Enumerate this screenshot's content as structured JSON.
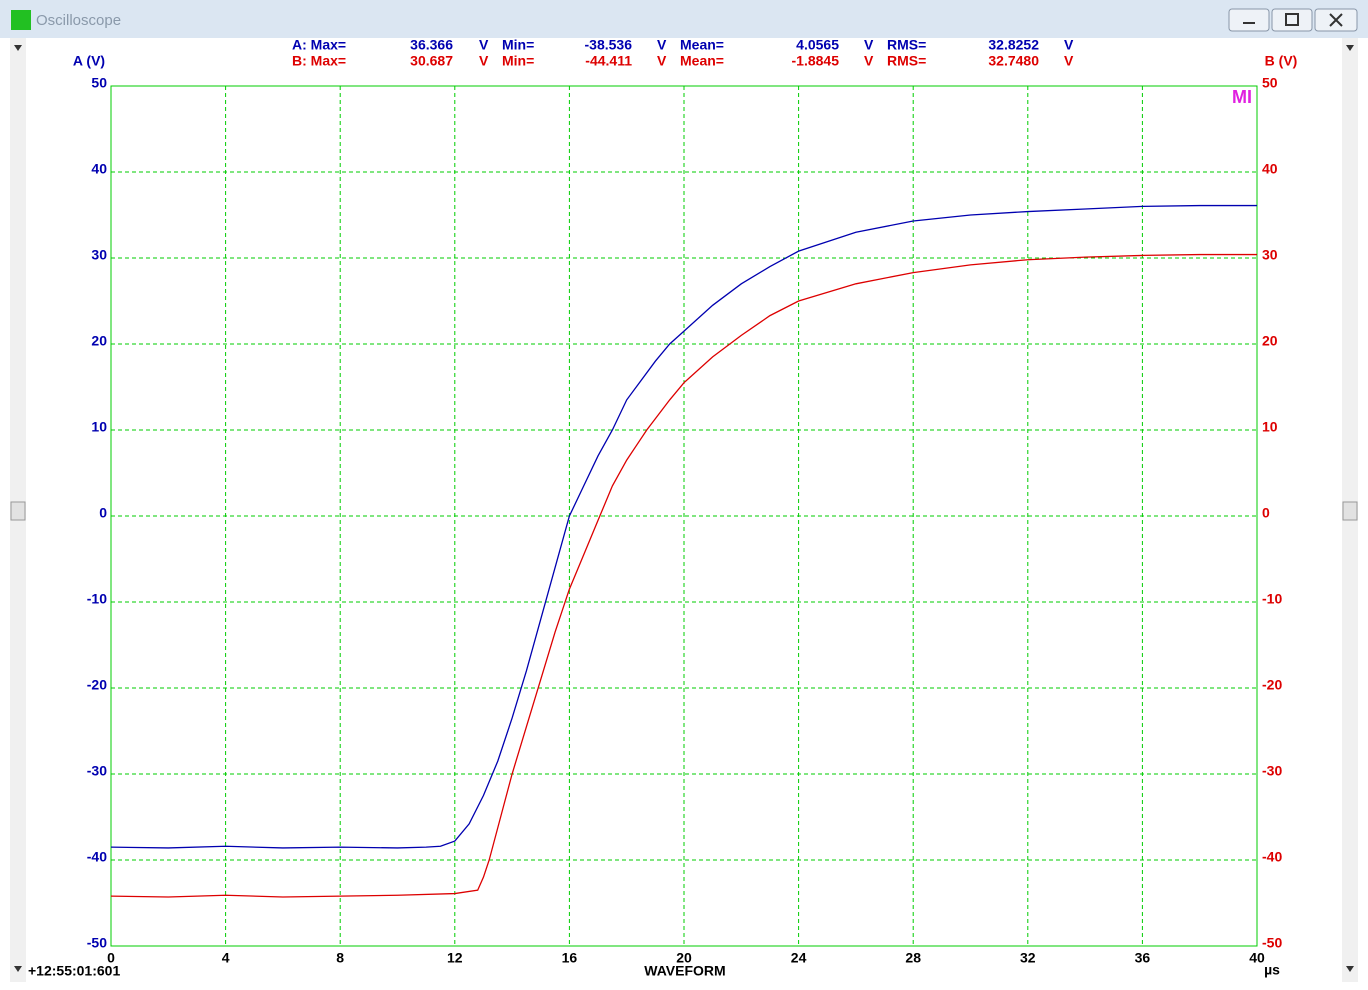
{
  "window": {
    "title": "Oscilloscope"
  },
  "stats": [
    [
      "A: Max=",
      "36.366",
      "V",
      "Min=",
      "-38.536",
      "V",
      "Mean=",
      "4.0565",
      "V",
      "RMS=",
      "32.8252",
      "V"
    ],
    [
      "B: Max=",
      "30.687",
      "V",
      "Min=",
      "-44.411",
      "V",
      "Mean=",
      "-1.8845",
      "V",
      "RMS=",
      "32.7480",
      "V"
    ]
  ],
  "chart_data": {
    "type": "line",
    "x_label": "WAVEFORM",
    "x_unit": "µs",
    "timestamp": "+12:55:01:601",
    "marker": "MI",
    "xlim": [
      0,
      40
    ],
    "xticks": [
      0,
      4,
      8,
      12,
      16,
      20,
      24,
      28,
      32,
      36,
      40
    ],
    "ylim": [
      -50,
      50
    ],
    "yticks": [
      -50,
      -40,
      -30,
      -20,
      -10,
      0,
      10,
      20,
      30,
      40,
      50
    ],
    "y2lim": [
      -50,
      50
    ],
    "y2ticks": [
      -50,
      -40,
      -30,
      -20,
      -10,
      0,
      10,
      20,
      30,
      40,
      50
    ],
    "grid": true,
    "grid_color": "#00cc00",
    "series": [
      {
        "name": "A (V)",
        "color": "#0000b0",
        "x": [
          0,
          2,
          4,
          6,
          8,
          10,
          11,
          11.5,
          12,
          12.5,
          13,
          13.5,
          14,
          14.5,
          15,
          15.5,
          16,
          16.5,
          17,
          17.5,
          18,
          19,
          19.5,
          20,
          21,
          22,
          23,
          24,
          26,
          28,
          30,
          32,
          34,
          36,
          38,
          40
        ],
        "values": [
          -38.5,
          -38.6,
          -38.4,
          -38.6,
          -38.5,
          -38.6,
          -38.5,
          -38.4,
          -37.8,
          -35.8,
          -32.5,
          -28.5,
          -23.5,
          -18,
          -12,
          -6,
          0,
          3.5,
          7,
          10,
          13.5,
          18,
          20,
          21.5,
          24.5,
          27,
          29,
          30.8,
          33,
          34.3,
          35,
          35.4,
          35.7,
          36,
          36.1,
          36.1
        ]
      },
      {
        "name": "B (V)",
        "color": "#dd0000",
        "axis": "y2",
        "x": [
          0,
          2,
          4,
          6,
          8,
          10,
          12,
          12.8,
          13,
          13.2,
          13.6,
          14,
          14.5,
          15,
          15.5,
          16,
          16.5,
          17,
          17.5,
          18,
          18.7,
          19.5,
          20,
          21,
          21.6,
          22,
          23,
          24,
          26,
          28,
          30,
          32,
          34,
          36,
          38,
          40
        ],
        "values": [
          -44.2,
          -44.3,
          -44.1,
          -44.3,
          -44.2,
          -44.1,
          -43.9,
          -43.5,
          -42,
          -40,
          -35,
          -30,
          -24.5,
          -19,
          -13.5,
          -8.5,
          -4.5,
          -0.5,
          3.5,
          6.5,
          10,
          13.5,
          15.5,
          18.5,
          20,
          21,
          23.3,
          25,
          27,
          28.3,
          29.2,
          29.8,
          30.1,
          30.3,
          30.4,
          30.4
        ]
      }
    ]
  }
}
